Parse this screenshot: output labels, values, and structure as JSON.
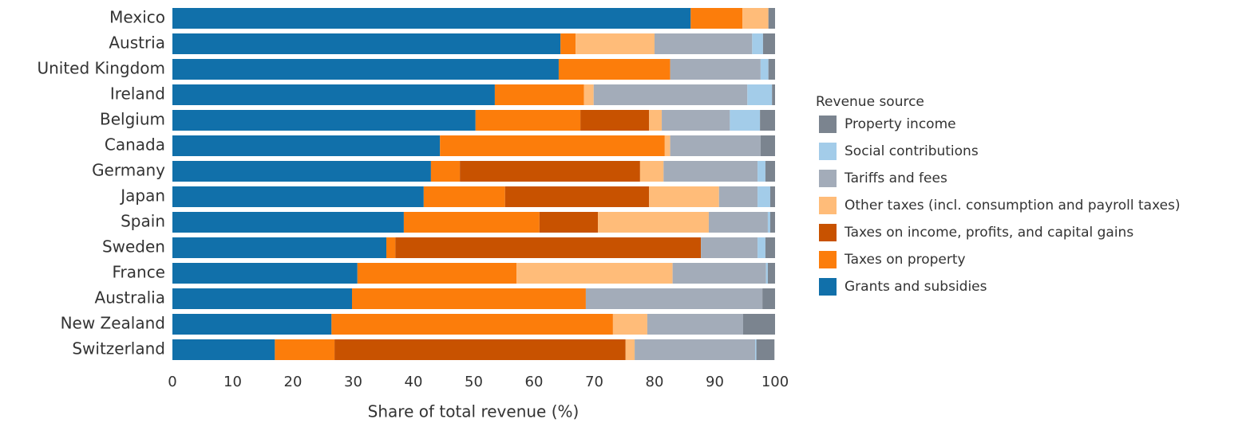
{
  "chart_data": {
    "type": "stacked-barh",
    "x_label": "Share of total revenue (%)",
    "legend_title": "Revenue source",
    "legend_position": "right",
    "categories": [
      "Mexico",
      "Austria",
      "United Kingdom",
      "Ireland",
      "Belgium",
      "Canada",
      "Germany",
      "Japan",
      "Spain",
      "Sweden",
      "France",
      "Australia",
      "New Zealand",
      "Switzerland"
    ],
    "series": [
      {
        "name": "Grants and subsidies",
        "color": "#1170aa",
        "values": [
          86.0,
          64.4,
          64.1,
          53.5,
          50.3,
          44.4,
          42.9,
          41.7,
          38.4,
          35.5,
          30.7,
          29.8,
          26.4,
          17.0
        ]
      },
      {
        "name": "Taxes on property",
        "color": "#fc7d0b",
        "values": [
          8.6,
          2.5,
          18.5,
          14.8,
          17.4,
          37.3,
          4.8,
          13.5,
          22.5,
          1.5,
          26.4,
          38.8,
          46.7,
          9.9
        ]
      },
      {
        "name": "Taxes on income, profits, and capital gains",
        "color": "#c85200",
        "values": [
          0,
          0,
          0,
          0,
          11.4,
          0,
          29.9,
          23.9,
          9.7,
          50.7,
          0,
          0,
          0,
          48.3
        ]
      },
      {
        "name": "Other taxes (incl. consumption and payroll taxes)",
        "color": "#ffbc79",
        "values": [
          4.3,
          13.1,
          0,
          1.6,
          2.1,
          0.9,
          3.9,
          11.6,
          18.4,
          0,
          25.9,
          0,
          5.7,
          1.5
        ]
      },
      {
        "name": "Tariffs and fees",
        "color": "#a3acb9",
        "values": [
          0,
          16.2,
          15.0,
          25.5,
          11.3,
          15.0,
          15.6,
          6.4,
          9.8,
          9.4,
          15.5,
          29.3,
          15.9,
          20.0
        ]
      },
      {
        "name": "Social contributions",
        "color": "#a3cce9",
        "values": [
          0,
          1.8,
          1.3,
          4.1,
          5.0,
          0,
          1.3,
          2.1,
          0.4,
          1.3,
          0.3,
          0,
          0,
          0.2
        ]
      },
      {
        "name": "Property income",
        "color": "#7b848f",
        "values": [
          1.1,
          2.0,
          1.1,
          0.5,
          2.5,
          2.4,
          1.6,
          0.8,
          0.8,
          1.6,
          1.2,
          2.1,
          5.3,
          3.0
        ]
      }
    ],
    "xlim": [
      0,
      100
    ],
    "xticks": [
      0,
      10,
      20,
      30,
      40,
      50,
      60,
      70,
      80,
      90,
      100
    ]
  }
}
